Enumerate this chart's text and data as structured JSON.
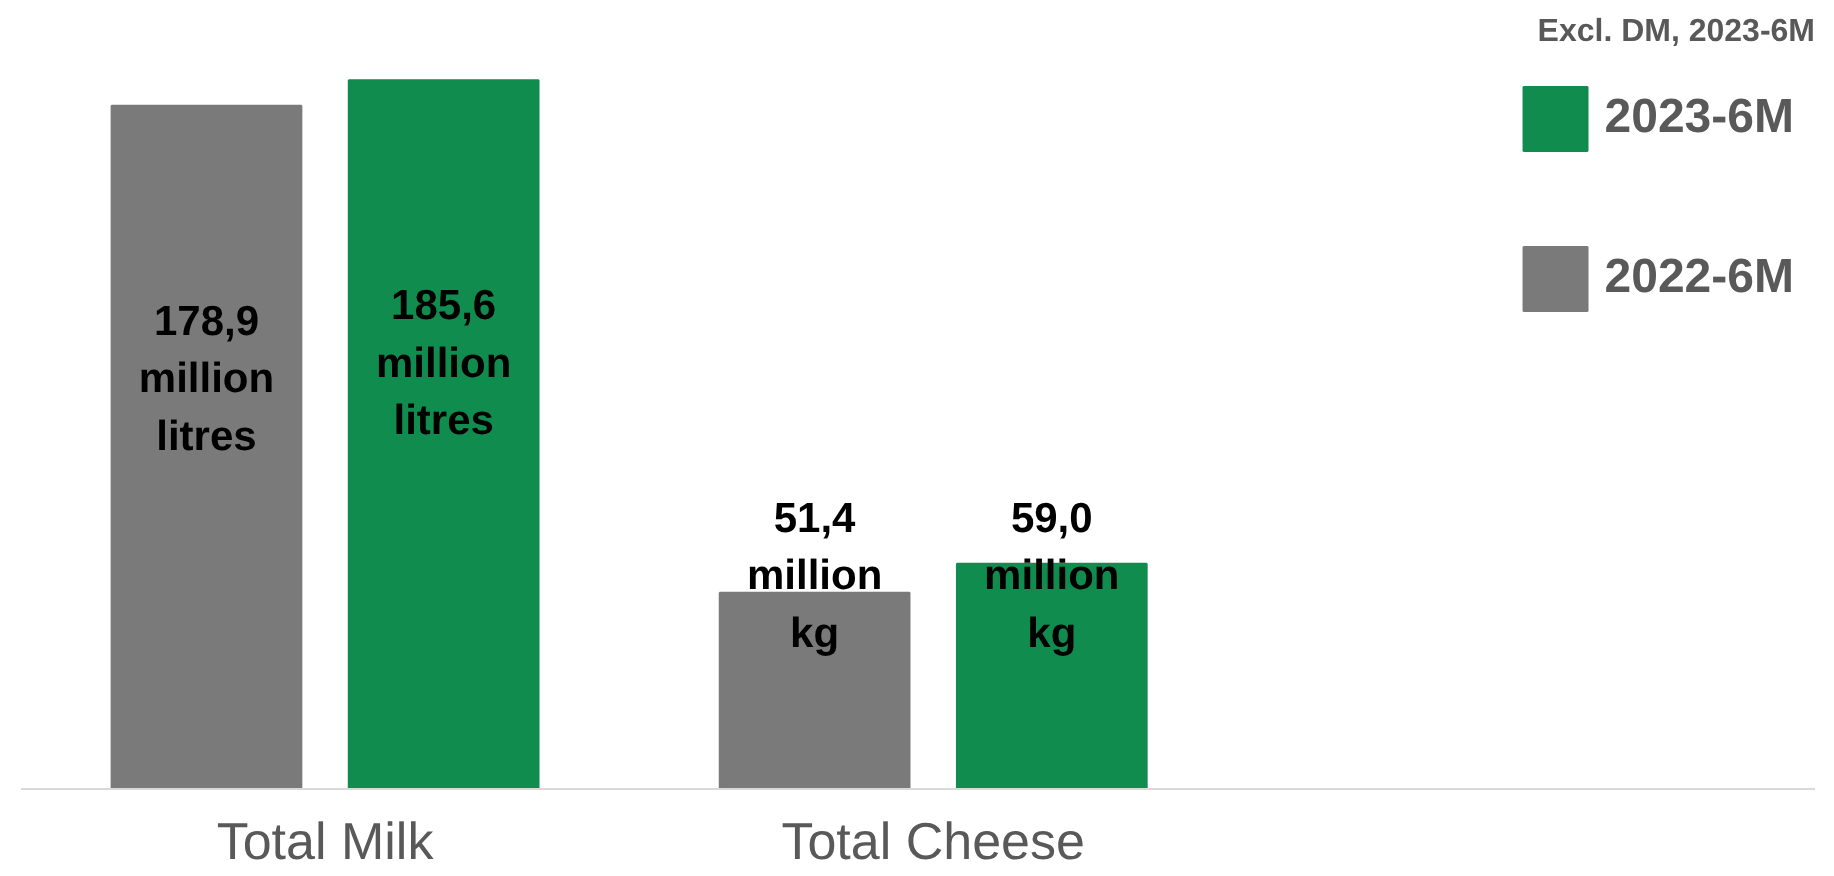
{
  "chart_data": {
    "type": "bar",
    "categories": [
      "Total Milk",
      "Total Cheese"
    ],
    "series": [
      {
        "name": "2022-6M",
        "color": "#7a7a7a",
        "values": [
          178.9,
          51.4
        ],
        "value_labels": [
          "178,9 million litres",
          "51,4 million kg"
        ]
      },
      {
        "name": "2023-6M",
        "color": "#118c4f",
        "values": [
          185.6,
          59.0
        ],
        "value_labels": [
          "185,6 million litres",
          "59,0 million kg"
        ]
      }
    ],
    "annotations": [
      "Excl. DM, 2023-6M"
    ],
    "legend": "right",
    "grid": false
  }
}
